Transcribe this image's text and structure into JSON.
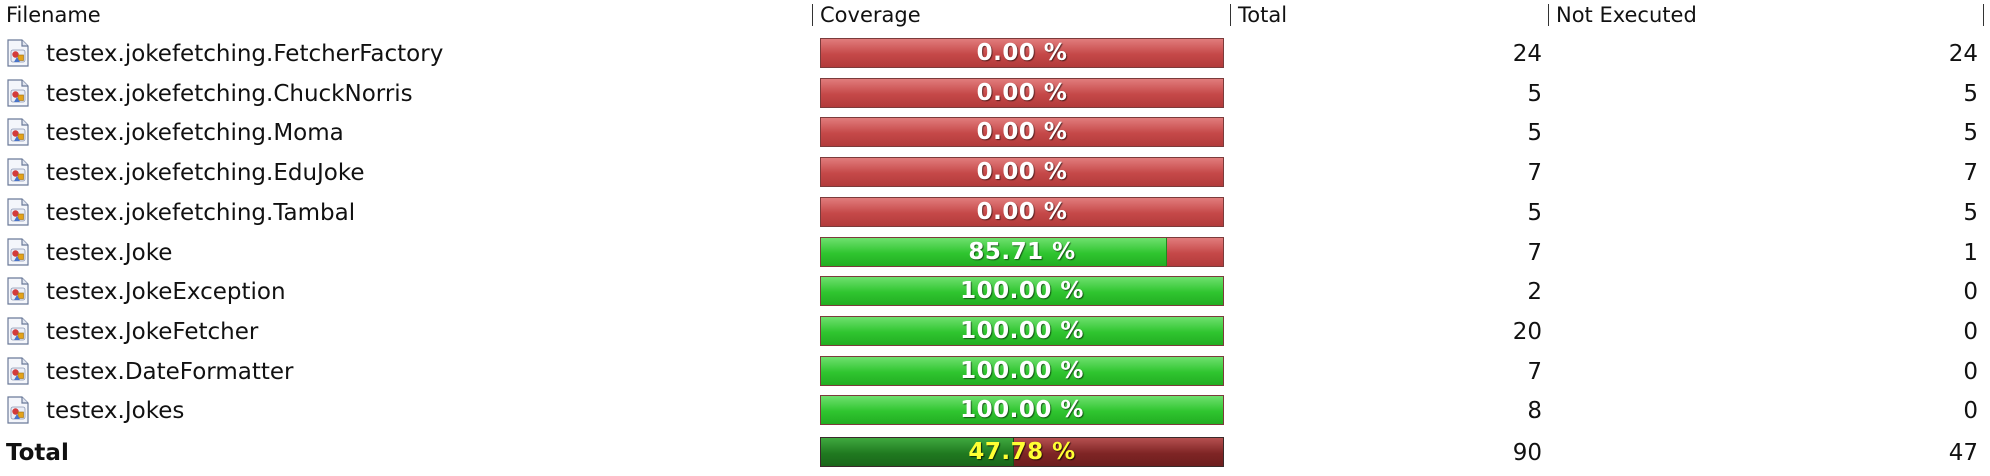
{
  "columns": {
    "filename": "Filename",
    "coverage": "Coverage",
    "total": "Total",
    "not_executed": "Not Executed"
  },
  "rows": [
    {
      "name": "testex.jokefetching.FetcherFactory",
      "coverage_label": "0.00 %",
      "coverage_fraction": 0.0,
      "total": "24",
      "not_executed": "24",
      "icon": "java-class-file-icon"
    },
    {
      "name": "testex.jokefetching.ChuckNorris",
      "coverage_label": "0.00 %",
      "coverage_fraction": 0.0,
      "total": "5",
      "not_executed": "5",
      "icon": "java-class-file-icon"
    },
    {
      "name": "testex.jokefetching.Moma",
      "coverage_label": "0.00 %",
      "coverage_fraction": 0.0,
      "total": "5",
      "not_executed": "5",
      "icon": "java-class-file-icon"
    },
    {
      "name": "testex.jokefetching.EduJoke",
      "coverage_label": "0.00 %",
      "coverage_fraction": 0.0,
      "total": "7",
      "not_executed": "7",
      "icon": "java-class-file-icon"
    },
    {
      "name": "testex.jokefetching.Tambal",
      "coverage_label": "0.00 %",
      "coverage_fraction": 0.0,
      "total": "5",
      "not_executed": "5",
      "icon": "java-class-file-icon"
    },
    {
      "name": "testex.Joke",
      "coverage_label": "85.71 %",
      "coverage_fraction": 0.8571,
      "total": "7",
      "not_executed": "1",
      "icon": "java-class-file-icon"
    },
    {
      "name": "testex.JokeException",
      "coverage_label": "100.00 %",
      "coverage_fraction": 1.0,
      "total": "2",
      "not_executed": "0",
      "icon": "java-class-file-icon"
    },
    {
      "name": "testex.JokeFetcher",
      "coverage_label": "100.00 %",
      "coverage_fraction": 1.0,
      "total": "20",
      "not_executed": "0",
      "icon": "java-class-file-icon"
    },
    {
      "name": "testex.DateFormatter",
      "coverage_label": "100.00 %",
      "coverage_fraction": 1.0,
      "total": "7",
      "not_executed": "0",
      "icon": "java-class-file-icon"
    },
    {
      "name": "testex.Jokes",
      "coverage_label": "100.00 %",
      "coverage_fraction": 1.0,
      "total": "8",
      "not_executed": "0",
      "icon": "java-class-file-icon"
    }
  ],
  "summary": {
    "label": "Total",
    "coverage_label": "47.78 %",
    "coverage_fraction": 0.4778,
    "total": "90",
    "not_executed": "47"
  },
  "colors": {
    "covered": "#2fc52f",
    "uncovered": "#c54848",
    "summary_text": "#ffff33"
  }
}
